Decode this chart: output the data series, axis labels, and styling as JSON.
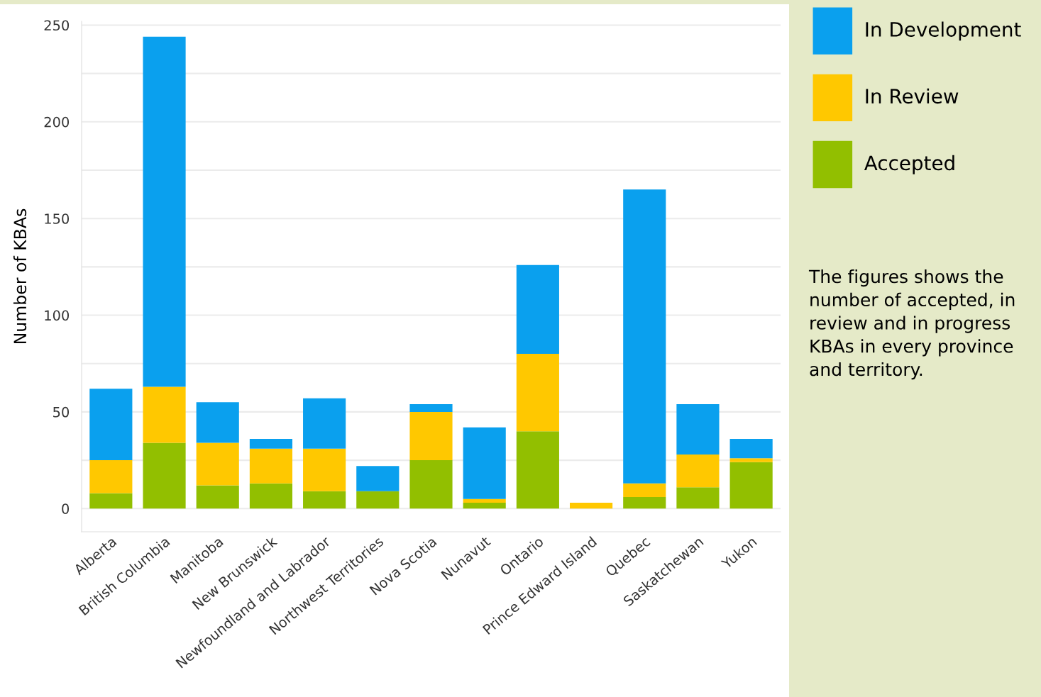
{
  "chart_data": {
    "type": "bar",
    "stacked": true,
    "ylabel": "Number of KBAs",
    "categories": [
      "Alberta",
      "British Columbia",
      "Manitoba",
      "New Brunswick",
      "Newfoundland and Labrador",
      "Northwest Territories",
      "Nova Scotia",
      "Nunavut",
      "Ontario",
      "Prince Edward Island",
      "Quebec",
      "Saskatchewan",
      "Yukon"
    ],
    "series": [
      {
        "name": "Accepted",
        "color": "#92bf00",
        "values": [
          8,
          34,
          12,
          13,
          9,
          9,
          25,
          3,
          40,
          0,
          6,
          11,
          24
        ]
      },
      {
        "name": "In Review",
        "color": "#ffc800",
        "values": [
          17,
          29,
          22,
          18,
          22,
          0,
          25,
          2,
          40,
          3,
          7,
          17,
          2
        ]
      },
      {
        "name": "In Development",
        "color": "#0aa0ee",
        "values": [
          37,
          181,
          21,
          5,
          26,
          13,
          4,
          37,
          46,
          0,
          152,
          26,
          10
        ]
      }
    ],
    "ylim": [
      -12,
      252
    ],
    "yticks": [
      0,
      {
        "value": 25,
        "label": null
      },
      50,
      {
        "value": 75,
        "label": null
      },
      100,
      {
        "value": 125,
        "label": null
      },
      150,
      {
        "value": 175,
        "label": null
      },
      200,
      {
        "value": 225,
        "label": null
      },
      250
    ],
    "grid": "y",
    "legend": "top right",
    "annotations": [
      "The figures shows the number of accepted, in review and in progress KBAs in every province and territory."
    ]
  }
}
